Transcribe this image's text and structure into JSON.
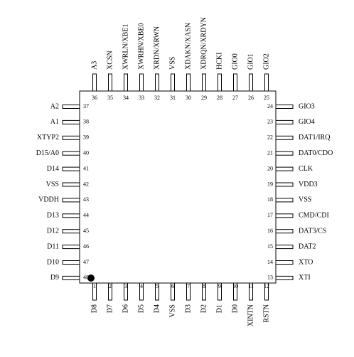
{
  "pins": {
    "top": [
      {
        "number": 36,
        "label": "A3"
      },
      {
        "number": 35,
        "label": "XCSN"
      },
      {
        "number": 34,
        "label": "XWRLN/XBE1"
      },
      {
        "number": 33,
        "label": "XWRHN/XBE0"
      },
      {
        "number": 32,
        "label": "XRDN/XRWN"
      },
      {
        "number": 31,
        "label": "VSS"
      },
      {
        "number": 30,
        "label": "XDAKN/XASN"
      },
      {
        "number": 29,
        "label": "XDRQN/XRDYN"
      },
      {
        "number": 28,
        "label": "HCKI"
      },
      {
        "number": 27,
        "label": "GIO0"
      },
      {
        "number": 26,
        "label": "GIO1"
      },
      {
        "number": 25,
        "label": "GIO2"
      }
    ],
    "left": [
      {
        "number": 37,
        "label": "A2"
      },
      {
        "number": 38,
        "label": "A1"
      },
      {
        "number": 39,
        "label": "XTYP2"
      },
      {
        "number": 40,
        "label": "D15/A0"
      },
      {
        "number": 41,
        "label": "D14"
      },
      {
        "number": 42,
        "label": "VSS"
      },
      {
        "number": 43,
        "label": "VDDH"
      },
      {
        "number": 44,
        "label": "D13"
      },
      {
        "number": 45,
        "label": "D12"
      },
      {
        "number": 46,
        "label": "D11"
      },
      {
        "number": 47,
        "label": "D10"
      },
      {
        "number": 48,
        "label": "D9"
      }
    ],
    "right": [
      {
        "number": 24,
        "label": "GIO3"
      },
      {
        "number": 23,
        "label": "GIO4"
      },
      {
        "number": 22,
        "label": "DAT1/IRQ"
      },
      {
        "number": 21,
        "label": "DAT0/CDO"
      },
      {
        "number": 20,
        "label": "CLK"
      },
      {
        "number": 19,
        "label": "VDD3"
      },
      {
        "number": 18,
        "label": "VSS"
      },
      {
        "number": 17,
        "label": "CMD/CDI"
      },
      {
        "number": 16,
        "label": "DAT3/CS"
      },
      {
        "number": 15,
        "label": "DAT2"
      },
      {
        "number": 14,
        "label": "XTO"
      },
      {
        "number": 13,
        "label": "XTI"
      }
    ],
    "bottom": [
      {
        "number": 1,
        "label": "D8"
      },
      {
        "number": 2,
        "label": "D7"
      },
      {
        "number": 3,
        "label": "D6"
      },
      {
        "number": 4,
        "label": "D5"
      },
      {
        "number": 5,
        "label": "D4"
      },
      {
        "number": 6,
        "label": "VSS"
      },
      {
        "number": 7,
        "label": "D3"
      },
      {
        "number": 8,
        "label": "D2"
      },
      {
        "number": 9,
        "label": "D1"
      },
      {
        "number": 10,
        "label": "D0"
      },
      {
        "number": 11,
        "label": "XINTN"
      },
      {
        "number": 12,
        "label": "RSTN"
      }
    ]
  }
}
